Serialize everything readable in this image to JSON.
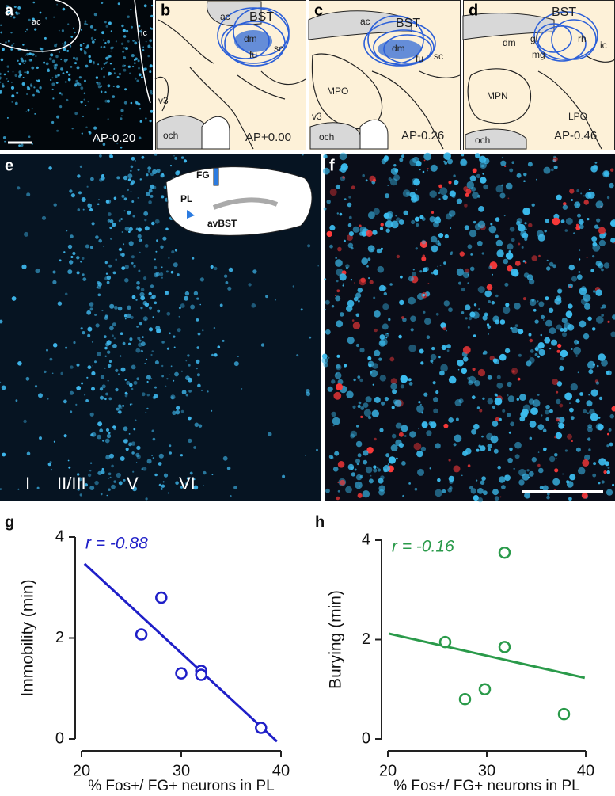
{
  "panels": {
    "a": {
      "label": "a",
      "texts": [
        "ac",
        "ic",
        "AP-0.20"
      ]
    },
    "b": {
      "label": "b",
      "texts": [
        "ac",
        "BST",
        "dm",
        "fu",
        "sc",
        "v3",
        "och",
        "AP+0.00"
      ]
    },
    "c": {
      "label": "c",
      "texts": [
        "ac",
        "BST",
        "dm",
        "fu",
        "sc",
        "MPO",
        "v3",
        "och",
        "AP-0.26"
      ]
    },
    "d": {
      "label": "d",
      "texts": [
        "BST",
        "dm",
        "gi",
        "mg",
        "rh",
        "ic",
        "MPN",
        "LPO",
        "och",
        "AP-0.46"
      ]
    },
    "e": {
      "label": "e",
      "texts": [
        "FG",
        "PL",
        "avBST",
        "I",
        "II/III",
        "V",
        "VI"
      ]
    },
    "f": {
      "label": "f"
    }
  },
  "chart_data": [
    {
      "type": "scatter",
      "panel_label": "g",
      "annotation": "r = -0.88",
      "x_label": "% Fos+/ FG+ neurons in PL",
      "y_label": "Immobility (min)",
      "x": [
        26,
        28,
        30,
        32,
        32,
        38
      ],
      "series": [
        {
          "color": "#1f1fc8",
          "values": [
            2.07,
            2.8,
            1.3,
            1.35,
            1.27,
            0.22
          ]
        }
      ],
      "fit": {
        "x": [
          20.3,
          39.6
        ],
        "values": [
          3.47,
          -0.05
        ]
      },
      "xlim": [
        20,
        40
      ],
      "xticks": [
        20,
        30,
        40
      ],
      "ylim": [
        0,
        4
      ],
      "yticks": [
        0,
        2,
        4
      ]
    },
    {
      "type": "scatter",
      "panel_label": "h",
      "annotation": "r = -0.16",
      "x_label": "% Fos+/ FG+ neurons in PL",
      "y_label": "Burying (min)",
      "x": [
        25.8,
        27.8,
        29.8,
        31.8,
        31.8,
        37.8
      ],
      "series": [
        {
          "color": "#2a9a4a",
          "values": [
            1.95,
            0.8,
            1.0,
            3.75,
            1.85,
            0.5
          ]
        }
      ],
      "fit": {
        "x": [
          20.1,
          39.9
        ],
        "values": [
          2.12,
          1.23
        ]
      },
      "xlim": [
        20,
        40
      ],
      "xticks": [
        20,
        30,
        40
      ],
      "ylim": [
        0,
        4
      ],
      "yticks": [
        0,
        2,
        4
      ]
    }
  ]
}
